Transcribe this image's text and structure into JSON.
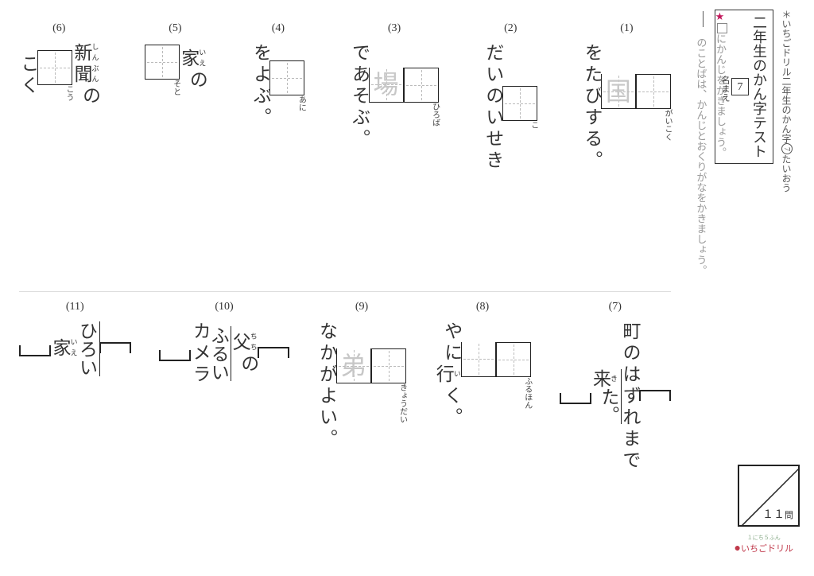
{
  "header": {
    "topnote_pre": "＊いちごドリル二年生のかん字",
    "topnote_circ": "7",
    "topnote_post": "たいおう",
    "title": "二年生のかん字テスト",
    "title_num": "7",
    "namae": "名まえ"
  },
  "instructions": {
    "line1_post": "にかんじをかきましょう。",
    "line2": "のことばは、かんじとおくりがなをかきましょう。"
  },
  "score": {
    "total": "１１",
    "unit": "問"
  },
  "logo": {
    "sub": "１にち５ふん",
    "main": "いちごドリル"
  },
  "items": [
    {
      "num": "(1)",
      "type": "box",
      "pre": "",
      "boxes": [
        {
          "furi": "がい",
          "fill": ""
        },
        {
          "furi": "こく",
          "fill": "国"
        }
      ],
      "post": "をたびする。"
    },
    {
      "num": "(2)",
      "type": "box",
      "pre": "",
      "boxes": [
        {
          "furi": "こ",
          "fill": ""
        }
      ],
      "post": "だいのいせき"
    },
    {
      "num": "(3)",
      "type": "box",
      "pre": "",
      "boxes": [
        {
          "furi": "ひろ",
          "fill": ""
        },
        {
          "furi": "ば",
          "fill": "場"
        }
      ],
      "post": "であそぶ。"
    },
    {
      "num": "(4)",
      "type": "box",
      "pre": "",
      "boxes": [
        {
          "furi": "あに",
          "fill": ""
        }
      ],
      "post": "をよぶ。"
    },
    {
      "num": "(5)",
      "type": "box",
      "pre_ruby": [
        {
          "base": "家",
          "rt": "いえ"
        }
      ],
      "pre_plain": "の",
      "boxes": [
        {
          "furi": "そと",
          "fill": ""
        }
      ],
      "post": ""
    },
    {
      "num": "(6)",
      "type": "box",
      "pre_ruby": [
        {
          "base": "新",
          "rt": "しん"
        },
        {
          "base": "聞",
          "rt": "ぶん"
        }
      ],
      "pre_plain": "の",
      "boxes": [
        {
          "furi": "こう",
          "fill": ""
        }
      ],
      "post": "こく"
    },
    {
      "num": "(7)",
      "type": "bracket",
      "pre_plain": "町のはずれまで",
      "over_ruby": [
        {
          "base": "来",
          "rt": "き"
        }
      ],
      "over_plain": "た。"
    },
    {
      "num": "(8)",
      "type": "box",
      "pre": "",
      "boxes": [
        {
          "furi": "ふる",
          "fill": ""
        },
        {
          "furi": "ほん",
          "fill": ""
        }
      ],
      "post_plain": "やに",
      "post_ruby": [
        {
          "base": "行",
          "rt": "い"
        }
      ],
      "post_tail": "く。"
    },
    {
      "num": "(9)",
      "type": "box",
      "pre": "",
      "boxes": [
        {
          "furi": "きょう",
          "fill": ""
        },
        {
          "furi": "だい",
          "fill": "弟"
        }
      ],
      "post": "なかがよい。"
    },
    {
      "num": "(10)",
      "type": "bracket",
      "pre_ruby": [
        {
          "base": "父",
          "rt": "ちち"
        }
      ],
      "pre_plain": "の",
      "over_plain": "ふるい",
      "post_plain": "カメラ"
    },
    {
      "num": "(11)",
      "type": "bracket",
      "over_plain": "ひろい",
      "post_ruby": [
        {
          "base": "家",
          "rt": "いえ"
        }
      ]
    }
  ]
}
